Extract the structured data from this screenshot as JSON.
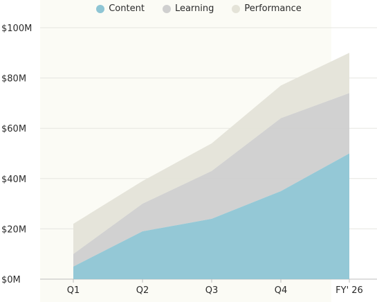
{
  "chart_data": {
    "type": "area",
    "stacked": true,
    "categories": [
      "Q1",
      "Q2",
      "Q3",
      "Q4",
      "FY' 26"
    ],
    "ylim": [
      0,
      100
    ],
    "yticks": [
      0,
      20,
      40,
      60,
      80,
      100
    ],
    "ytick_labels": [
      "$0M",
      "$20M",
      "$40M",
      "$60M",
      "$80M",
      "$100M"
    ],
    "grid": true,
    "legend_position": "top",
    "series": [
      {
        "name": "Content",
        "values": [
          5,
          19,
          24,
          35,
          50
        ],
        "color": "#8ec5d4"
      },
      {
        "name": "Learning",
        "values": [
          5,
          11,
          19,
          29,
          24
        ],
        "color": "#cfcfcf"
      },
      {
        "name": "Performance",
        "values": [
          12,
          9,
          11,
          13,
          16
        ],
        "color": "#e4e3d8"
      }
    ]
  }
}
